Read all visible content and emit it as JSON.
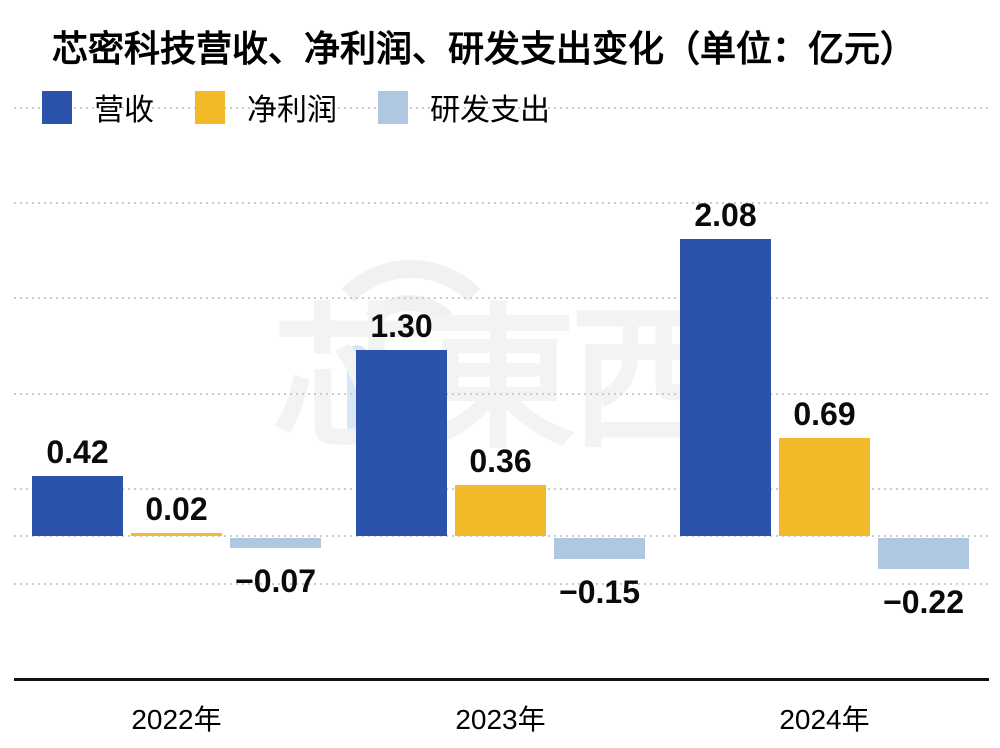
{
  "chart_data": {
    "type": "bar",
    "title": "芯密科技营收、净利润、研发支出变化（单位：亿元）",
    "unit": "亿元",
    "categories": [
      "2022年",
      "2023年",
      "2024年"
    ],
    "series": [
      {
        "name": "营收",
        "color": "#2B53A9",
        "values": [
          0.42,
          1.3,
          2.08
        ],
        "labels": [
          "0.42",
          "1.30",
          "2.08"
        ]
      },
      {
        "name": "净利润",
        "color": "#F2B929",
        "values": [
          0.02,
          0.36,
          0.69
        ],
        "labels": [
          "0.02",
          "0.36",
          "0.69"
        ]
      },
      {
        "name": "研发支出",
        "color": "#B0C7E1",
        "values": [
          -0.07,
          -0.15,
          -0.22
        ],
        "labels": [
          "−0.07",
          "−0.15",
          "−0.22"
        ]
      }
    ],
    "ylim": [
      -1,
      3
    ],
    "grid": true,
    "gridline_color": "#cbcbcb",
    "axis_color": "#111111",
    "legend_position": "top-left",
    "value_labels": true,
    "xlabel": "",
    "ylabel": ""
  },
  "watermark": {
    "text": "芯東西"
  }
}
